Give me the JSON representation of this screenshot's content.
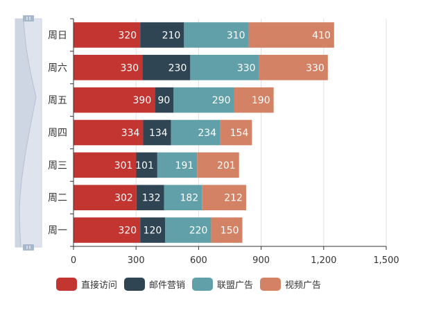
{
  "chart_data": {
    "type": "bar",
    "orientation": "horizontal",
    "stacked": true,
    "categories": [
      "周一",
      "周二",
      "周三",
      "周四",
      "周五",
      "周六",
      "周日"
    ],
    "series": [
      {
        "name": "直接访问",
        "color": "#c23531",
        "values": [
          320,
          302,
          301,
          334,
          390,
          330,
          320
        ]
      },
      {
        "name": "邮件营销",
        "color": "#2f4554",
        "values": [
          120,
          132,
          101,
          134,
          90,
          230,
          210
        ]
      },
      {
        "name": "联盟广告",
        "color": "#61a0a8",
        "values": [
          220,
          182,
          191,
          234,
          290,
          330,
          310
        ]
      },
      {
        "name": "视频广告",
        "color": "#d48265",
        "values": [
          150,
          212,
          201,
          154,
          190,
          330,
          410
        ]
      }
    ],
    "title": "",
    "xlabel": "",
    "ylabel": "",
    "xlim": [
      0,
      1500
    ],
    "xticks": [
      "0",
      "300",
      "600",
      "900",
      "1,200",
      "1,500"
    ],
    "grid": true,
    "data_labels": true,
    "legend_position": "bottom",
    "datazoom": {
      "orientation": "vertical",
      "position": "left",
      "start": 0,
      "end": 100
    }
  }
}
